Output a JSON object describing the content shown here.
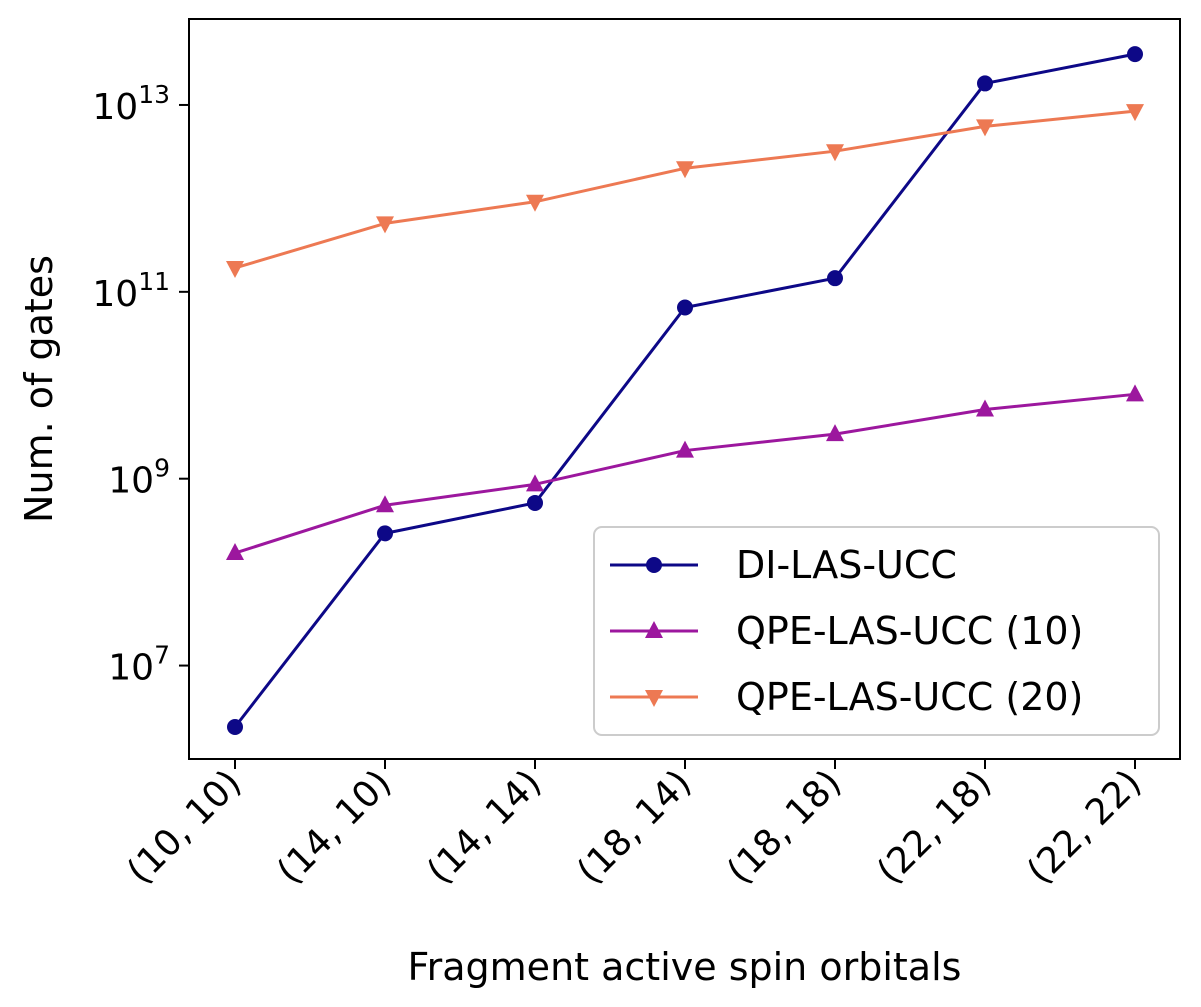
{
  "chart_data": {
    "type": "line",
    "title": "",
    "xlabel": "Fragment active spin orbitals",
    "ylabel": "Num. of gates",
    "yscale": "log",
    "ylim_exponent": [
      6.0,
      13.92
    ],
    "y_ticks": [
      {
        "base": "10",
        "exponent": "7",
        "value": 10000000.0
      },
      {
        "base": "10",
        "exponent": "9",
        "value": 1000000000.0
      },
      {
        "base": "10",
        "exponent": "11",
        "value": 100000000000.0
      },
      {
        "base": "10",
        "exponent": "13",
        "value": 10000000000000.0
      }
    ],
    "categories": [
      "(10, 10)",
      "(14, 10)",
      "(14, 14)",
      "(18, 14)",
      "(18, 18)",
      "(22, 18)",
      "(22, 22)"
    ],
    "legend_position": "lower-right",
    "series": [
      {
        "name": "DI-LAS-UCC",
        "color": "#0d0887",
        "marker": "circle",
        "values": [
          2200000.0,
          260000000.0,
          550000000.0,
          68000000000.0,
          140000000000.0,
          17000000000000.0,
          35000000000000.0
        ]
      },
      {
        "name": "QPE-LAS-UCC (10)",
        "color": "#9c179e",
        "marker": "triangle-up",
        "values": [
          160000000.0,
          520000000.0,
          870000000.0,
          2000000000.0,
          3000000000.0,
          5500000000.0,
          8000000000.0
        ]
      },
      {
        "name": "QPE-LAS-UCC (20)",
        "color": "#ed7953",
        "marker": "triangle-down",
        "values": [
          180000000000.0,
          540000000000.0,
          920000000000.0,
          2100000000000.0,
          3200000000000.0,
          5900000000000.0,
          8600000000000.0
        ]
      }
    ]
  }
}
